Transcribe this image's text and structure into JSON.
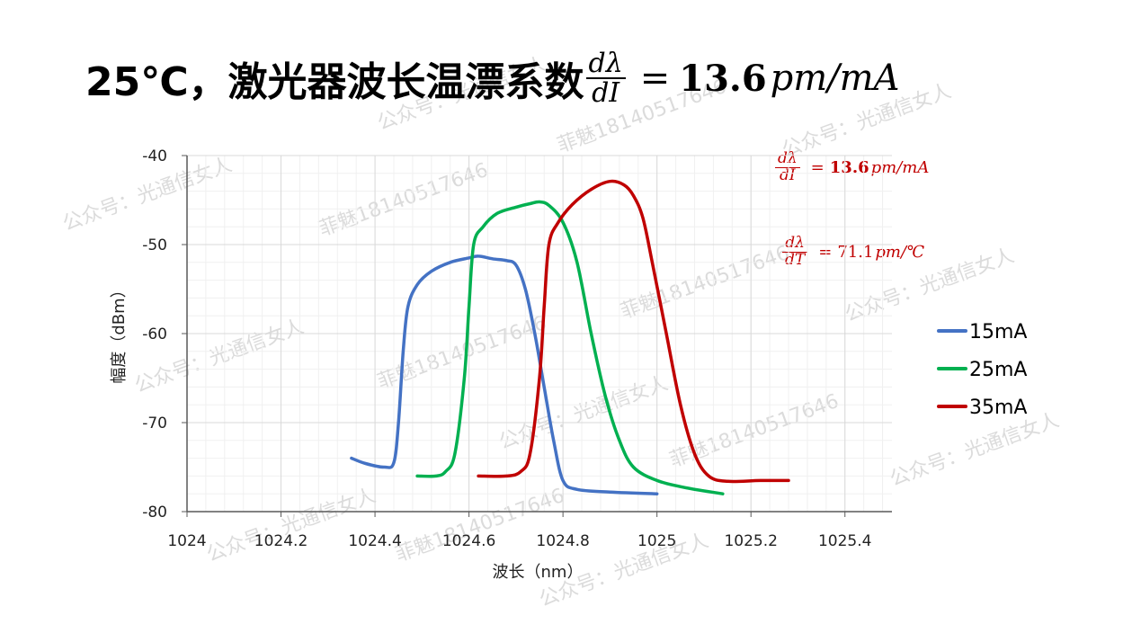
{
  "title": {
    "prefix": "25℃，激光器波长温漂系数",
    "frac_num": "dλ",
    "frac_den": "dI",
    "eq": "=",
    "value": "13.6",
    "unit": "pm/mA"
  },
  "annotations": [
    {
      "frac_num": "dλ",
      "frac_den": "dI",
      "eq": "=",
      "value": "13.6",
      "unit": "pm/mA",
      "color": "#c00000"
    },
    {
      "frac_num": "dλ",
      "frac_den": "dT",
      "eq": "=",
      "value": "71.1",
      "unit": "pm/℃",
      "color": "#c00000"
    }
  ],
  "watermarks": [
    "公众号：光通信女人",
    "菲魅18140517646"
  ],
  "chart_data": {
    "type": "line",
    "xlabel": "波长（nm）",
    "ylabel": "幅度（dBm）",
    "xlim": [
      1024,
      1025.5
    ],
    "ylim": [
      -80,
      -40
    ],
    "xticks": [
      "1024",
      "1024.2",
      "1024.4",
      "1024.6",
      "1024.8",
      "1025",
      "1025.2",
      "1025.4"
    ],
    "yticks": [
      "-40",
      "-50",
      "-60",
      "-70",
      "-80"
    ],
    "grid": true,
    "legend_position": "right",
    "series": [
      {
        "name": "15mA",
        "color": "#4472c4",
        "points": [
          [
            1024.35,
            -74.0
          ],
          [
            1024.38,
            -74.6
          ],
          [
            1024.42,
            -75.0
          ],
          [
            1024.44,
            -74.5
          ],
          [
            1024.45,
            -70.0
          ],
          [
            1024.46,
            -62.0
          ],
          [
            1024.47,
            -57.0
          ],
          [
            1024.49,
            -54.5
          ],
          [
            1024.52,
            -53.0
          ],
          [
            1024.56,
            -52.0
          ],
          [
            1024.6,
            -51.5
          ],
          [
            1024.62,
            -51.3
          ],
          [
            1024.65,
            -51.6
          ],
          [
            1024.68,
            -51.8
          ],
          [
            1024.7,
            -52.3
          ],
          [
            1024.72,
            -55.0
          ],
          [
            1024.74,
            -60.0
          ],
          [
            1024.76,
            -66.0
          ],
          [
            1024.78,
            -72.0
          ],
          [
            1024.8,
            -76.5
          ],
          [
            1024.83,
            -77.5
          ],
          [
            1024.9,
            -77.8
          ],
          [
            1025.0,
            -78.0
          ]
        ]
      },
      {
        "name": "25mA",
        "color": "#00b050",
        "points": [
          [
            1024.49,
            -76.0
          ],
          [
            1024.53,
            -76.0
          ],
          [
            1024.55,
            -75.5
          ],
          [
            1024.57,
            -73.5
          ],
          [
            1024.59,
            -65.0
          ],
          [
            1024.6,
            -57.0
          ],
          [
            1024.61,
            -50.0
          ],
          [
            1024.63,
            -48.0
          ],
          [
            1024.66,
            -46.5
          ],
          [
            1024.7,
            -45.8
          ],
          [
            1024.73,
            -45.4
          ],
          [
            1024.75,
            -45.2
          ],
          [
            1024.77,
            -45.6
          ],
          [
            1024.8,
            -47.5
          ],
          [
            1024.83,
            -52.0
          ],
          [
            1024.86,
            -60.0
          ],
          [
            1024.89,
            -67.0
          ],
          [
            1024.92,
            -72.0
          ],
          [
            1024.95,
            -75.0
          ],
          [
            1025.0,
            -76.5
          ],
          [
            1025.06,
            -77.3
          ],
          [
            1025.14,
            -78.0
          ]
        ]
      },
      {
        "name": "35mA",
        "color": "#c00000",
        "points": [
          [
            1024.62,
            -76.0
          ],
          [
            1024.68,
            -76.0
          ],
          [
            1024.71,
            -75.5
          ],
          [
            1024.73,
            -73.5
          ],
          [
            1024.75,
            -65.0
          ],
          [
            1024.76,
            -57.0
          ],
          [
            1024.77,
            -50.0
          ],
          [
            1024.79,
            -47.5
          ],
          [
            1024.82,
            -45.5
          ],
          [
            1024.86,
            -43.8
          ],
          [
            1024.9,
            -42.9
          ],
          [
            1024.93,
            -43.3
          ],
          [
            1024.95,
            -44.5
          ],
          [
            1024.97,
            -47.0
          ],
          [
            1024.99,
            -52.0
          ],
          [
            1025.02,
            -60.0
          ],
          [
            1025.05,
            -68.0
          ],
          [
            1025.08,
            -73.5
          ],
          [
            1025.11,
            -76.0
          ],
          [
            1025.15,
            -76.6
          ],
          [
            1025.22,
            -76.5
          ],
          [
            1025.28,
            -76.5
          ]
        ]
      }
    ]
  }
}
